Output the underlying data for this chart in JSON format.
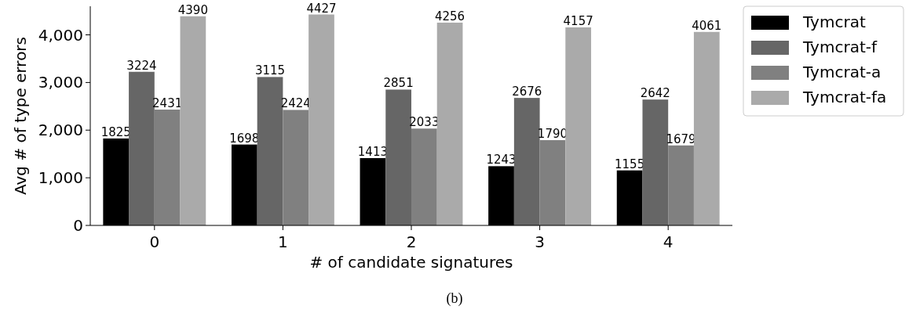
{
  "chart_data": {
    "type": "bar",
    "xlabel": "# of candidate signatures",
    "ylabel": "Avg # of type errors",
    "categories": [
      "0",
      "1",
      "2",
      "3",
      "4"
    ],
    "series": [
      {
        "name": "Tymcrat",
        "color": "#000000",
        "values": [
          1825,
          1698,
          1413,
          1243,
          1155
        ]
      },
      {
        "name": "Tymcrat-f",
        "color": "#666666",
        "values": [
          3224,
          3115,
          2851,
          2676,
          2642
        ]
      },
      {
        "name": "Tymcrat-a",
        "color": "#808080",
        "values": [
          2431,
          2424,
          2033,
          1790,
          1679
        ]
      },
      {
        "name": "Tymcrat-fa",
        "color": "#aaaaaa",
        "values": [
          4390,
          4427,
          4256,
          4157,
          4061
        ]
      }
    ],
    "ylim": [
      0,
      4600
    ],
    "yticks": [
      0,
      {
        "value": 1000,
        "label": "1,000"
      },
      {
        "value": 2000,
        "label": "2,000"
      },
      {
        "value": 3000,
        "label": "3,000"
      },
      {
        "value": 4000,
        "label": "4,000"
      }
    ],
    "data_labels": true,
    "legend": "top right",
    "grid": false,
    "annotations": [
      "(b)"
    ]
  }
}
